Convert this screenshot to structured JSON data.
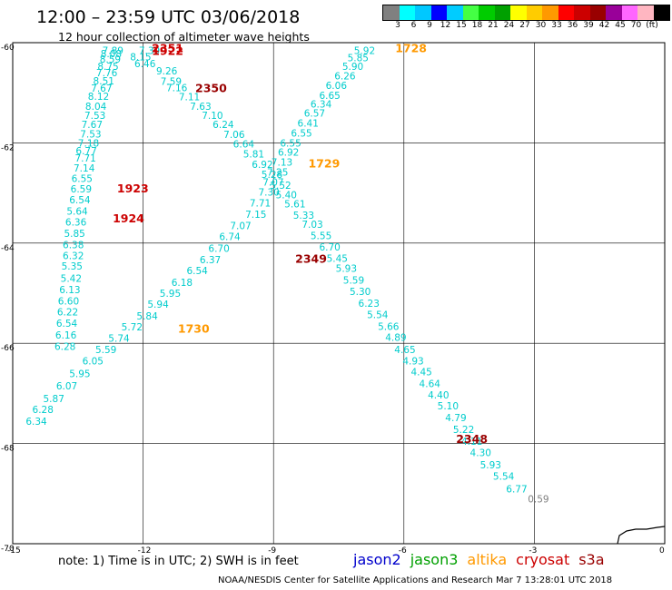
{
  "title": "12:00 – 23:59 UTC 03/06/2018",
  "subtitle": "12 hour collection of altimeter wave heights",
  "colorbar": {
    "colors": [
      "#808080",
      "#00ffff",
      "#00c8ff",
      "#0000ff",
      "#00ccff",
      "#44ff44",
      "#00cc00",
      "#00a000",
      "#ffff00",
      "#ffcc00",
      "#ff9900",
      "#ff0000",
      "#cc0000",
      "#990000",
      "#990099",
      "#ff66ff",
      "#ffb6c1",
      "#000000"
    ],
    "labels": [
      "3",
      "6",
      "9",
      "12",
      "15",
      "18",
      "21",
      "24",
      "27",
      "30",
      "33",
      "36",
      "39",
      "42",
      "45",
      "70",
      "(ft)"
    ]
  },
  "axes": {
    "x_ticks": [
      "-15",
      "-12",
      "-9",
      "-6",
      "-3",
      "0"
    ],
    "y_ticks": [
      "-60",
      "-62",
      "-64",
      "-66",
      "-68",
      "-70"
    ]
  },
  "note": "note:  1) Time is in UTC;  2) SWH is in feet",
  "legend": [
    {
      "name": "jason2",
      "color": "#0000cc"
    },
    {
      "name": "jason3",
      "color": "#00a000"
    },
    {
      "name": "altika",
      "color": "#ff9900"
    },
    {
      "name": "cryosat",
      "color": "#cc0000"
    },
    {
      "name": "s3a",
      "color": "#990000"
    }
  ],
  "credit": "NOAA/NESDIS Center for Satellite Applications and Research    Mar  7 13:28:01 UTC 2018",
  "chart_data": {
    "type": "scatter",
    "title": "12:00 – 23:59 UTC 03/06/2018",
    "subtitle": "12 hour collection of altimeter wave heights",
    "xlim": [
      -15,
      0
    ],
    "ylim": [
      -70,
      -60
    ],
    "x_ticks": [
      -15,
      -12,
      -9,
      -6,
      -3,
      0
    ],
    "y_ticks": [
      -60,
      -62,
      -64,
      -66,
      -68,
      -70
    ],
    "grid": true,
    "units": "ft",
    "time_labels": [
      {
        "text": "2351",
        "lon": -11.8,
        "lat": -60.1,
        "color": "#cc0000"
      },
      {
        "text": "1922",
        "lon": -11.8,
        "lat": -60.15,
        "color": "#cc0000"
      },
      {
        "text": "2350",
        "lon": -10.8,
        "lat": -60.9,
        "color": "#990000"
      },
      {
        "text": "1923",
        "lon": -12.6,
        "lat": -62.9,
        "color": "#cc0000"
      },
      {
        "text": "1924",
        "lon": -12.7,
        "lat": -63.5,
        "color": "#cc0000"
      },
      {
        "text": "1728",
        "lon": -6.2,
        "lat": -60.1,
        "color": "#ff9900"
      },
      {
        "text": "1729",
        "lon": -8.2,
        "lat": -62.4,
        "color": "#ff9900"
      },
      {
        "text": "2349",
        "lon": -8.5,
        "lat": -64.3,
        "color": "#990000"
      },
      {
        "text": "1730",
        "lon": -11.2,
        "lat": -65.7,
        "color": "#ff9900"
      },
      {
        "text": "2348",
        "lon": -4.8,
        "lat": -67.9,
        "color": "#990000"
      }
    ],
    "series": [
      {
        "name": "cryosat",
        "color": "#00cccc",
        "points": [
          {
            "lon": -12.94,
            "lat": -60.15,
            "v": "7.89"
          },
          {
            "lon": -12.98,
            "lat": -60.22,
            "v": "8.08"
          },
          {
            "lon": -13.0,
            "lat": -60.33,
            "v": "8.59"
          },
          {
            "lon": -13.05,
            "lat": -60.47,
            "v": "8.75"
          },
          {
            "lon": -13.08,
            "lat": -60.6,
            "v": "7.76"
          },
          {
            "lon": -13.15,
            "lat": -60.76,
            "v": "8.51"
          },
          {
            "lon": -13.2,
            "lat": -60.91,
            "v": "7.67"
          },
          {
            "lon": -13.27,
            "lat": -61.07,
            "v": "8.12"
          },
          {
            "lon": -13.33,
            "lat": -61.27,
            "v": "8.04"
          },
          {
            "lon": -13.35,
            "lat": -61.45,
            "v": "7.53"
          },
          {
            "lon": -13.42,
            "lat": -61.63,
            "v": "7.67"
          },
          {
            "lon": -13.45,
            "lat": -61.82,
            "v": "7.53"
          },
          {
            "lon": -13.5,
            "lat": -62.0,
            "v": "7.18"
          },
          {
            "lon": -13.55,
            "lat": -62.16,
            "v": "6.77"
          },
          {
            "lon": -13.57,
            "lat": -62.3,
            "v": "7.71"
          },
          {
            "lon": -13.6,
            "lat": -62.5,
            "v": "7.14"
          },
          {
            "lon": -13.65,
            "lat": -62.71,
            "v": "6.55"
          },
          {
            "lon": -13.67,
            "lat": -62.92,
            "v": "6.59"
          },
          {
            "lon": -13.7,
            "lat": -63.13,
            "v": "6.54"
          },
          {
            "lon": -13.76,
            "lat": -63.36,
            "v": "5.64"
          },
          {
            "lon": -13.79,
            "lat": -63.58,
            "v": "6.36"
          },
          {
            "lon": -13.82,
            "lat": -63.8,
            "v": "5.85"
          },
          {
            "lon": -13.85,
            "lat": -64.03,
            "v": "6.38"
          },
          {
            "lon": -13.85,
            "lat": -64.25,
            "v": "6.32"
          },
          {
            "lon": -13.88,
            "lat": -64.46,
            "v": "5.35"
          },
          {
            "lon": -13.9,
            "lat": -64.7,
            "v": "5.42"
          },
          {
            "lon": -13.93,
            "lat": -64.93,
            "v": "6.13"
          },
          {
            "lon": -13.96,
            "lat": -65.15,
            "v": "6.60"
          },
          {
            "lon": -13.98,
            "lat": -65.37,
            "v": "6.22"
          },
          {
            "lon": -14.0,
            "lat": -65.6,
            "v": "6.54"
          },
          {
            "lon": -14.02,
            "lat": -65.83,
            "v": "6.16"
          },
          {
            "lon": -14.04,
            "lat": -66.06,
            "v": "6.28"
          }
        ]
      },
      {
        "name": "s3a",
        "color": "#00cccc",
        "points": [
          {
            "lon": -12.1,
            "lat": -60.15,
            "v": "7.39"
          },
          {
            "lon": -12.3,
            "lat": -60.28,
            "v": "8.15"
          },
          {
            "lon": -12.2,
            "lat": -60.42,
            "v": "6.46"
          },
          {
            "lon": -11.7,
            "lat": -60.56,
            "v": "9.26"
          },
          {
            "lon": -11.6,
            "lat": -60.77,
            "v": "7.59"
          },
          {
            "lon": -11.47,
            "lat": -60.9,
            "v": "7.16"
          },
          {
            "lon": -11.18,
            "lat": -61.08,
            "v": "7.11"
          },
          {
            "lon": -10.92,
            "lat": -61.27,
            "v": "7.63"
          },
          {
            "lon": -10.65,
            "lat": -61.45,
            "v": "7.10"
          },
          {
            "lon": -10.4,
            "lat": -61.63,
            "v": "6.24"
          },
          {
            "lon": -10.15,
            "lat": -61.83,
            "v": "7.06"
          },
          {
            "lon": -9.93,
            "lat": -62.02,
            "v": "6.64"
          },
          {
            "lon": -9.7,
            "lat": -62.22,
            "v": "5.81"
          },
          {
            "lon": -9.5,
            "lat": -62.43,
            "v": "6.92"
          },
          {
            "lon": -9.28,
            "lat": -62.63,
            "v": "5.28"
          },
          {
            "lon": -9.08,
            "lat": -62.84,
            "v": "5.52"
          },
          {
            "lon": -8.95,
            "lat": -63.03,
            "v": "5.40"
          },
          {
            "lon": -8.75,
            "lat": -63.22,
            "v": "5.61"
          },
          {
            "lon": -8.55,
            "lat": -63.44,
            "v": "5.33"
          },
          {
            "lon": -8.35,
            "lat": -63.62,
            "v": "7.03"
          },
          {
            "lon": -8.15,
            "lat": -63.85,
            "v": "5.55"
          },
          {
            "lon": -7.95,
            "lat": -64.08,
            "v": "6.70"
          },
          {
            "lon": -7.78,
            "lat": -64.3,
            "v": "5.45"
          },
          {
            "lon": -7.57,
            "lat": -64.5,
            "v": "5.93"
          },
          {
            "lon": -7.4,
            "lat": -64.74,
            "v": "5.59"
          },
          {
            "lon": -7.25,
            "lat": -64.96,
            "v": "5.30"
          },
          {
            "lon": -7.05,
            "lat": -65.2,
            "v": "6.23"
          },
          {
            "lon": -6.85,
            "lat": -65.43,
            "v": "5.54"
          },
          {
            "lon": -6.6,
            "lat": -65.66,
            "v": "5.66"
          },
          {
            "lon": -6.43,
            "lat": -65.88,
            "v": "4.89"
          },
          {
            "lon": -6.22,
            "lat": -66.12,
            "v": "4.65"
          },
          {
            "lon": -6.03,
            "lat": -66.35,
            "v": "4.93"
          },
          {
            "lon": -5.84,
            "lat": -66.57,
            "v": "4.45"
          },
          {
            "lon": -5.65,
            "lat": -66.8,
            "v": "4.64"
          },
          {
            "lon": -5.45,
            "lat": -67.03,
            "v": "4.40"
          },
          {
            "lon": -5.23,
            "lat": -67.25,
            "v": "5.10"
          },
          {
            "lon": -5.05,
            "lat": -67.48,
            "v": "4.79"
          },
          {
            "lon": -4.87,
            "lat": -67.72,
            "v": "5.22"
          },
          {
            "lon": -4.68,
            "lat": -67.95,
            "v": "4.11"
          },
          {
            "lon": -4.48,
            "lat": -68.18,
            "v": "4.30"
          },
          {
            "lon": -4.25,
            "lat": -68.42,
            "v": "5.93"
          },
          {
            "lon": -3.95,
            "lat": -68.65,
            "v": "5.54"
          },
          {
            "lon": -3.65,
            "lat": -68.9,
            "v": "6.77"
          }
        ]
      },
      {
        "name": "altika",
        "color": "#00cccc",
        "points": [
          {
            "lon": -7.15,
            "lat": -60.15,
            "v": "5.92"
          },
          {
            "lon": -7.3,
            "lat": -60.3,
            "v": "5.85"
          },
          {
            "lon": -7.42,
            "lat": -60.47,
            "v": "5.90"
          },
          {
            "lon": -7.6,
            "lat": -60.66,
            "v": "6.26"
          },
          {
            "lon": -7.8,
            "lat": -60.85,
            "v": "6.06"
          },
          {
            "lon": -7.95,
            "lat": -61.05,
            "v": "6.65"
          },
          {
            "lon": -8.15,
            "lat": -61.22,
            "v": "6.34"
          },
          {
            "lon": -8.3,
            "lat": -61.4,
            "v": "6.57"
          },
          {
            "lon": -8.45,
            "lat": -61.6,
            "v": "6.41"
          },
          {
            "lon": -8.6,
            "lat": -61.8,
            "v": "6.55"
          },
          {
            "lon": -8.85,
            "lat": -62.0,
            "v": "6.55"
          },
          {
            "lon": -8.9,
            "lat": -62.18,
            "v": "6.92"
          },
          {
            "lon": -9.05,
            "lat": -62.38,
            "v": "7.13"
          },
          {
            "lon": -9.15,
            "lat": -62.58,
            "v": "7.25"
          },
          {
            "lon": -9.25,
            "lat": -62.78,
            "v": "7.07"
          },
          {
            "lon": -9.35,
            "lat": -62.98,
            "v": "7.30"
          },
          {
            "lon": -9.55,
            "lat": -63.2,
            "v": "7.71"
          },
          {
            "lon": -9.65,
            "lat": -63.42,
            "v": "7.15"
          },
          {
            "lon": -10.0,
            "lat": -63.65,
            "v": "7.07"
          },
          {
            "lon": -10.25,
            "lat": -63.87,
            "v": "6.74"
          },
          {
            "lon": -10.5,
            "lat": -64.1,
            "v": "6.70"
          },
          {
            "lon": -10.7,
            "lat": -64.33,
            "v": "6.37"
          },
          {
            "lon": -11.0,
            "lat": -64.55,
            "v": "6.54"
          },
          {
            "lon": -11.35,
            "lat": -64.78,
            "v": "6.18"
          },
          {
            "lon": -11.62,
            "lat": -65.0,
            "v": "5.95"
          },
          {
            "lon": -11.9,
            "lat": -65.22,
            "v": "5.94"
          },
          {
            "lon": -12.15,
            "lat": -65.45,
            "v": "5.84"
          },
          {
            "lon": -12.5,
            "lat": -65.67,
            "v": "5.72"
          },
          {
            "lon": -12.8,
            "lat": -65.9,
            "v": "5.74"
          },
          {
            "lon": -13.1,
            "lat": -66.12,
            "v": "5.59"
          },
          {
            "lon": -13.4,
            "lat": -66.35,
            "v": "6.05"
          },
          {
            "lon": -13.7,
            "lat": -66.6,
            "v": "5.95"
          },
          {
            "lon": -14.0,
            "lat": -66.85,
            "v": "6.07"
          },
          {
            "lon": -14.3,
            "lat": -67.1,
            "v": "5.87"
          },
          {
            "lon": -14.55,
            "lat": -67.32,
            "v": "6.28"
          },
          {
            "lon": -14.7,
            "lat": -67.55,
            "v": "6.34"
          }
        ]
      },
      {
        "name": "grey",
        "color": "#808080",
        "points": [
          {
            "lon": -3.15,
            "lat": -69.1,
            "v": "0.59"
          }
        ]
      }
    ]
  }
}
